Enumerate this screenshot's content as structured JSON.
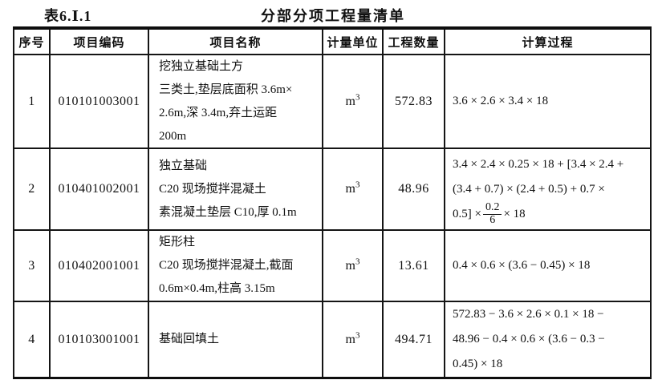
{
  "title": {
    "label": "表6.Ⅰ.1",
    "heading": "分部分项工程量清单"
  },
  "table": {
    "headers": [
      "序号",
      "项目编码",
      "项目名称",
      "计量单位",
      "工程数量",
      "计算过程"
    ],
    "unit": {
      "base": "m",
      "exp": "3"
    },
    "rows": [
      {
        "no": "1",
        "code": "010101003001",
        "name": [
          "挖独立基础土方",
          "三类土,垫层底面积 3.6m×",
          "2.6m,深 3.4m,弃土运距",
          "200m"
        ],
        "qty": "572.83",
        "calc": [
          "3.6 × 2.6 × 3.4 × 18"
        ]
      },
      {
        "no": "2",
        "code": "010401002001",
        "name": [
          "独立基础",
          "C20 现场搅拌混凝土",
          "素混凝土垫层 C10,厚 0.1m"
        ],
        "qty": "48.96",
        "calc": [
          "3.4 × 2.4 × 0.25 × 18 + [3.4 × 2.4 +",
          "(3.4 + 0.7) × (2.4 + 0.5) + 0.7 ×"
        ],
        "calc_frac": {
          "pre": "0.5] ×",
          "num": "0.2",
          "den": "6",
          "post": "× 18"
        }
      },
      {
        "no": "3",
        "code": "010402001001",
        "name": [
          "矩形柱",
          "C20 现场搅拌混凝土,截面",
          "0.6m×0.4m,柱高 3.15m"
        ],
        "qty": "13.61",
        "calc": [
          "0.4 × 0.6 × (3.6 − 0.45) × 18"
        ]
      },
      {
        "no": "4",
        "code": "010103001001",
        "name": [
          "基础回填土"
        ],
        "qty": "494.71",
        "calc": [
          "572.83 − 3.6 × 2.6 × 0.1 × 18 −",
          "48.96 − 0.4 × 0.6 × (3.6 − 0.3 −",
          "0.45) × 18"
        ]
      }
    ]
  }
}
